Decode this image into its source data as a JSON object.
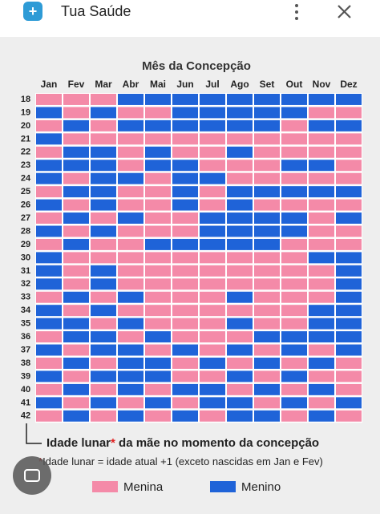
{
  "header": {
    "title": "Tua Saúde"
  },
  "chart": {
    "title": "Mês da Concepção",
    "months": [
      "Jan",
      "Fev",
      "Mar",
      "Abr",
      "Mai",
      "Jun",
      "Jul",
      "Ago",
      "Set",
      "Out",
      "Nov",
      "Dez"
    ],
    "ages": [
      "18",
      "19",
      "20",
      "21",
      "22",
      "23",
      "24",
      "25",
      "26",
      "27",
      "28",
      "29",
      "30",
      "31",
      "32",
      "33",
      "34",
      "35",
      "36",
      "37",
      "38",
      "39",
      "40",
      "41",
      "42"
    ],
    "legend": [
      {
        "label": "Menina",
        "color": "#f48aa8"
      },
      {
        "label": "Menino",
        "color": "#1f63d8"
      }
    ],
    "rows": [
      "GGGBBBBBBBBB",
      "BGBGGBBBBBGG",
      "GBGBBBBBBGBB",
      "BGGGGGGGGGGG",
      "GBBGBGGBGGGG",
      "BBBGBBGGGBBG",
      "BGBBGBBGGGGG",
      "GBBGGBGBBBBB",
      "BGBGGBGBGGGG",
      "GBGBGGBBBBGB",
      "BGBGGGBBBBGG",
      "GBGGBBBBBGGG",
      "BGGGGGGGGGBB",
      "BGBGGGGGGGGB",
      "BGBGGGGGGGGB",
      "GBGBGGGBGGGB",
      "BGBGGGGGGGBB",
      "BBGBGGGBGGBB",
      "GBBGBGGGBBBB",
      "BGBBGBGBGBGB",
      "GBGBBGBGBGBG",
      "BGBBBGGBGBGG",
      "GBGBGBBGBGBG",
      "BGBGBGBBGBGB",
      "GBGBGBGBBGBG"
    ],
    "footnote": {
      "label": "Idade lunar",
      "star": "*",
      "rest": " da mãe no momento da concepção"
    },
    "note": {
      "star": "*",
      "text": "Idade lunar = idade atual +1 (exceto nascidas em Jan e Fev)"
    }
  }
}
